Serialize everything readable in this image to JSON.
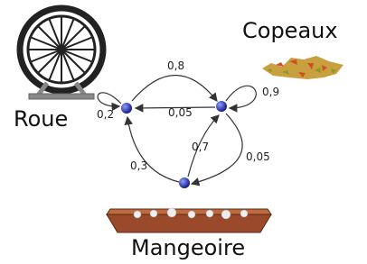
{
  "nodes": [
    {
      "label": "Roue"
    },
    {
      "label": "Copeaux"
    },
    {
      "label": "Mangeoire"
    }
  ],
  "edges": [
    {
      "label": "0,8"
    },
    {
      "label": "0,2"
    },
    {
      "label": "0,05"
    },
    {
      "label": "0,9"
    },
    {
      "label": "0,7"
    },
    {
      "label": "0,05"
    },
    {
      "label": "0,3"
    }
  ]
}
